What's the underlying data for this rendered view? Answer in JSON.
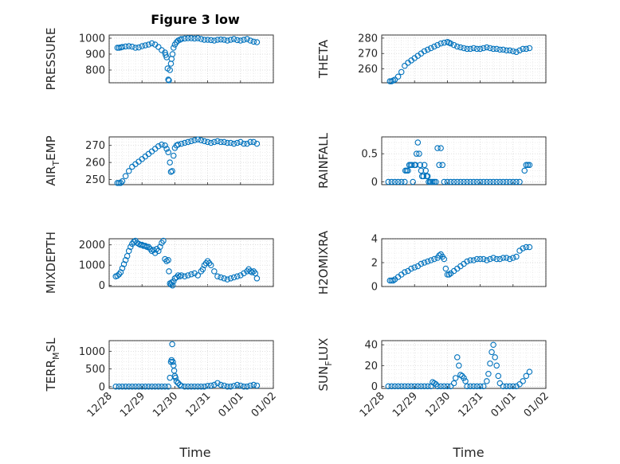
{
  "figure": {
    "title": "Figure 3 low",
    "x_label": "Time",
    "x_ticks": [
      "12/28",
      "12/29",
      "12/30",
      "12/31",
      "01/01",
      "01/02"
    ],
    "marker_color": "#0072bd"
  },
  "chart_data": [
    {
      "type": "scatter",
      "id": "pressure",
      "ylabel": "PRESSURE",
      "ylabel_sub": null,
      "ylim": [
        720,
        1020
      ],
      "yticks": [
        800,
        900,
        1000
      ],
      "x": [
        0.25,
        0.3,
        0.35,
        0.4,
        0.5,
        0.6,
        0.7,
        0.8,
        0.9,
        1.0,
        1.1,
        1.2,
        1.3,
        1.4,
        1.5,
        1.6,
        1.7,
        1.72,
        1.75,
        1.78,
        1.8,
        1.82,
        1.85,
        1.88,
        1.9,
        1.93,
        1.96,
        2.0,
        2.05,
        2.1,
        2.15,
        2.2,
        2.3,
        2.4,
        2.5,
        2.6,
        2.7,
        2.8,
        2.9,
        3.0,
        3.1,
        3.2,
        3.3,
        3.4,
        3.5,
        3.6,
        3.7,
        3.8,
        3.9,
        4.0,
        4.1,
        4.2,
        4.3,
        4.4,
        4.5
      ],
      "y": [
        940,
        940,
        942,
        945,
        948,
        950,
        947,
        940,
        942,
        950,
        955,
        960,
        968,
        960,
        945,
        925,
        910,
        895,
        880,
        810,
        740,
        735,
        800,
        840,
        870,
        900,
        940,
        960,
        975,
        985,
        990,
        995,
        998,
        1000,
        1000,
        998,
        1000,
        995,
        990,
        990,
        988,
        985,
        990,
        992,
        990,
        985,
        990,
        995,
        988,
        985,
        990,
        995,
        985,
        978,
        975
      ]
    },
    {
      "type": "scatter",
      "id": "theta",
      "ylabel": "THETA",
      "ylabel_sub": null,
      "ylim": [
        251,
        282
      ],
      "yticks": [
        260,
        270,
        280
      ],
      "x": [
        0.25,
        0.3,
        0.35,
        0.4,
        0.5,
        0.6,
        0.7,
        0.8,
        0.9,
        1.0,
        1.1,
        1.2,
        1.3,
        1.4,
        1.5,
        1.6,
        1.7,
        1.8,
        1.9,
        2.0,
        2.05,
        2.1,
        2.2,
        2.3,
        2.4,
        2.5,
        2.6,
        2.7,
        2.8,
        2.9,
        3.0,
        3.1,
        3.2,
        3.3,
        3.4,
        3.5,
        3.6,
        3.7,
        3.8,
        3.9,
        4.0,
        4.1,
        4.2,
        4.3,
        4.4,
        4.5
      ],
      "y": [
        252,
        252,
        252.5,
        253,
        255,
        258,
        262,
        264,
        265.5,
        267,
        268.5,
        270,
        271.5,
        272.5,
        273.5,
        274.5,
        275.5,
        276.5,
        277,
        277.5,
        277,
        276.5,
        275.5,
        274.5,
        274,
        273.5,
        273,
        273,
        273.5,
        273,
        273,
        273.5,
        274,
        273.5,
        273,
        273,
        272.5,
        272.5,
        272,
        272,
        271.5,
        271,
        272,
        273,
        273,
        273.5
      ]
    },
    {
      "type": "scatter",
      "id": "air_temp",
      "ylabel": "AIR",
      "ylabel_sub": "T",
      "ylabel_suffix": "EMP",
      "ylim": [
        247,
        275
      ],
      "yticks": [
        250,
        260,
        270
      ],
      "x": [
        0.25,
        0.3,
        0.35,
        0.4,
        0.5,
        0.6,
        0.7,
        0.8,
        0.9,
        1.0,
        1.1,
        1.2,
        1.3,
        1.4,
        1.5,
        1.6,
        1.7,
        1.75,
        1.8,
        1.85,
        1.88,
        1.92,
        1.96,
        2.0,
        2.05,
        2.1,
        2.2,
        2.3,
        2.4,
        2.5,
        2.6,
        2.7,
        2.8,
        2.9,
        3.0,
        3.1,
        3.2,
        3.3,
        3.4,
        3.5,
        3.6,
        3.7,
        3.8,
        3.9,
        4.0,
        4.1,
        4.2,
        4.3,
        4.4,
        4.5
      ],
      "y": [
        248,
        248,
        248,
        249,
        252,
        255,
        257.5,
        259,
        260.5,
        262,
        263.5,
        265,
        266.5,
        268,
        269.5,
        270.5,
        270,
        268,
        266,
        260,
        254.5,
        255,
        264,
        268.5,
        270,
        270.5,
        271,
        271.5,
        272,
        272.5,
        273,
        273.5,
        273,
        272.5,
        272,
        271.5,
        272,
        272.5,
        272,
        272,
        271.5,
        271.5,
        271,
        271.5,
        272,
        271,
        271,
        272,
        272,
        271
      ]
    },
    {
      "type": "scatter",
      "id": "rainfall",
      "ylabel": "RAINFALL",
      "ylabel_sub": null,
      "ylim": [
        -0.05,
        0.8
      ],
      "yticks": [
        0,
        0.5
      ],
      "x": [
        0.2,
        0.3,
        0.4,
        0.5,
        0.6,
        0.7,
        0.72,
        0.76,
        0.8,
        0.84,
        0.88,
        0.92,
        0.95,
        1.0,
        1.03,
        1.06,
        1.1,
        1.14,
        1.17,
        1.2,
        1.23,
        1.27,
        1.3,
        1.34,
        1.37,
        1.4,
        1.43,
        1.47,
        1.5,
        1.55,
        1.6,
        1.65,
        1.7,
        1.75,
        1.8,
        1.85,
        1.9,
        2.0,
        2.1,
        2.2,
        2.3,
        2.4,
        2.5,
        2.6,
        2.7,
        2.8,
        2.9,
        3.0,
        3.1,
        3.2,
        3.3,
        3.4,
        3.5,
        3.6,
        3.7,
        3.8,
        3.9,
        4.0,
        4.1,
        4.2,
        4.35,
        4.4,
        4.45,
        4.5
      ],
      "y": [
        0,
        0,
        0,
        0,
        0,
        0,
        0.2,
        0.2,
        0.2,
        0.3,
        0.3,
        0.3,
        0,
        0.3,
        0.3,
        0.5,
        0.7,
        0.5,
        0.3,
        0.2,
        0.1,
        0.1,
        0.3,
        0.2,
        0.1,
        0.1,
        0,
        0,
        0,
        0,
        0,
        0,
        0.6,
        0.3,
        0.6,
        0.3,
        0,
        0,
        0,
        0,
        0,
        0,
        0,
        0,
        0,
        0,
        0,
        0,
        0,
        0,
        0,
        0,
        0,
        0,
        0,
        0,
        0,
        0,
        0,
        0,
        0.2,
        0.3,
        0.3,
        0.3
      ]
    },
    {
      "type": "scatter",
      "id": "mixdepth",
      "ylabel": "MIXDEPTH",
      "ylabel_sub": null,
      "ylim": [
        -50,
        2300
      ],
      "yticks": [
        0,
        1000,
        2000
      ],
      "x": [
        0.2,
        0.25,
        0.3,
        0.35,
        0.4,
        0.45,
        0.5,
        0.55,
        0.6,
        0.65,
        0.7,
        0.75,
        0.8,
        0.85,
        0.9,
        0.95,
        1.0,
        1.05,
        1.1,
        1.15,
        1.2,
        1.25,
        1.3,
        1.35,
        1.4,
        1.45,
        1.5,
        1.55,
        1.6,
        1.65,
        1.7,
        1.75,
        1.8,
        1.82,
        1.85,
        1.88,
        1.9,
        1.93,
        1.96,
        2.0,
        2.05,
        2.1,
        2.15,
        2.2,
        2.3,
        2.4,
        2.5,
        2.6,
        2.7,
        2.8,
        2.85,
        2.9,
        2.95,
        3.0,
        3.05,
        3.1,
        3.2,
        3.3,
        3.4,
        3.5,
        3.6,
        3.7,
        3.8,
        3.9,
        4.0,
        4.1,
        4.2,
        4.25,
        4.3,
        4.35,
        4.4,
        4.45,
        4.5
      ],
      "y": [
        450,
        480,
        550,
        650,
        850,
        1050,
        1250,
        1450,
        1700,
        1900,
        2050,
        2150,
        2200,
        2100,
        2050,
        2000,
        2000,
        1950,
        1950,
        1900,
        1900,
        1800,
        1700,
        1750,
        1600,
        1800,
        1700,
        1900,
        2100,
        2200,
        1300,
        1200,
        1250,
        700,
        100,
        50,
        150,
        0,
        200,
        350,
        400,
        500,
        450,
        500,
        450,
        500,
        550,
        600,
        500,
        700,
        800,
        1000,
        1100,
        1200,
        1100,
        1000,
        700,
        450,
        400,
        350,
        300,
        350,
        400,
        450,
        500,
        600,
        700,
        800,
        700,
        650,
        700,
        600,
        350
      ]
    },
    {
      "type": "scatter",
      "id": "h2omixra",
      "ylabel": "H2OMIXRA",
      "ylabel_sub": null,
      "ylim": [
        0,
        4
      ],
      "yticks": [
        0,
        2,
        4
      ],
      "x": [
        0.25,
        0.3,
        0.35,
        0.4,
        0.5,
        0.6,
        0.7,
        0.8,
        0.9,
        1.0,
        1.1,
        1.2,
        1.3,
        1.4,
        1.5,
        1.6,
        1.7,
        1.75,
        1.8,
        1.85,
        1.9,
        1.95,
        2.0,
        2.05,
        2.1,
        2.2,
        2.3,
        2.4,
        2.5,
        2.6,
        2.7,
        2.8,
        2.9,
        3.0,
        3.1,
        3.2,
        3.3,
        3.4,
        3.5,
        3.6,
        3.7,
        3.8,
        3.9,
        4.0,
        4.1,
        4.2,
        4.3,
        4.4,
        4.5
      ],
      "y": [
        0.5,
        0.5,
        0.5,
        0.6,
        0.8,
        1.0,
        1.2,
        1.3,
        1.5,
        1.6,
        1.7,
        1.9,
        2.0,
        2.1,
        2.2,
        2.3,
        2.4,
        2.6,
        2.7,
        2.5,
        2.3,
        1.5,
        1.0,
        1.0,
        1.1,
        1.3,
        1.5,
        1.7,
        1.9,
        2.1,
        2.2,
        2.2,
        2.3,
        2.3,
        2.3,
        2.2,
        2.3,
        2.4,
        2.3,
        2.3,
        2.4,
        2.4,
        2.3,
        2.4,
        2.5,
        3.0,
        3.2,
        3.3,
        3.3
      ]
    },
    {
      "type": "scatter",
      "id": "terr_msl",
      "ylabel": "TERR",
      "ylabel_sub": "M",
      "ylabel_suffix": "SL",
      "ylim": [
        -50,
        1300
      ],
      "yticks": [
        0,
        500,
        1000
      ],
      "x": [
        0.2,
        0.3,
        0.4,
        0.5,
        0.6,
        0.7,
        0.8,
        0.9,
        1.0,
        1.1,
        1.2,
        1.3,
        1.4,
        1.5,
        1.6,
        1.7,
        1.8,
        1.85,
        1.88,
        1.9,
        1.92,
        1.94,
        1.96,
        1.98,
        2.0,
        2.02,
        2.05,
        2.1,
        2.15,
        2.2,
        2.3,
        2.4,
        2.5,
        2.6,
        2.7,
        2.8,
        2.9,
        3.0,
        3.1,
        3.2,
        3.3,
        3.4,
        3.5,
        3.6,
        3.7,
        3.8,
        3.9,
        4.0,
        4.1,
        4.2,
        4.3,
        4.4,
        4.5
      ],
      "y": [
        0,
        0,
        0,
        0,
        0,
        0,
        0,
        0,
        0,
        0,
        0,
        0,
        0,
        0,
        0,
        0,
        0,
        250,
        700,
        750,
        1200,
        700,
        600,
        450,
        300,
        250,
        150,
        100,
        50,
        20,
        0,
        0,
        0,
        0,
        0,
        0,
        0,
        20,
        30,
        50,
        100,
        50,
        30,
        0,
        0,
        20,
        50,
        30,
        0,
        0,
        30,
        50,
        30
      ]
    },
    {
      "type": "scatter",
      "id": "sun_flux",
      "ylabel": "SUN",
      "ylabel_sub": "F",
      "ylabel_suffix": "LUX",
      "ylim": [
        -2,
        44
      ],
      "yticks": [
        0,
        20,
        40
      ],
      "x": [
        0.2,
        0.3,
        0.4,
        0.5,
        0.6,
        0.7,
        0.8,
        0.9,
        1.0,
        1.1,
        1.2,
        1.3,
        1.4,
        1.5,
        1.55,
        1.6,
        1.65,
        1.7,
        1.8,
        1.9,
        2.0,
        2.1,
        2.2,
        2.25,
        2.3,
        2.35,
        2.4,
        2.45,
        2.5,
        2.55,
        2.6,
        2.7,
        2.8,
        2.9,
        3.0,
        3.1,
        3.2,
        3.25,
        3.3,
        3.35,
        3.4,
        3.45,
        3.5,
        3.55,
        3.6,
        3.7,
        3.8,
        3.9,
        4.0,
        4.1,
        4.2,
        4.3,
        4.4,
        4.5
      ],
      "y": [
        0,
        0,
        0,
        0,
        0,
        0,
        0,
        0,
        0,
        0,
        0,
        0,
        0,
        0,
        4,
        3,
        2,
        0,
        0,
        0,
        0,
        0,
        3,
        8,
        28,
        20,
        11,
        10,
        8,
        5,
        0,
        0,
        0,
        0,
        0,
        0,
        5,
        12,
        22,
        33,
        40,
        28,
        20,
        10,
        3,
        0,
        0,
        0,
        0,
        0,
        2,
        5,
        10,
        14
      ]
    }
  ]
}
